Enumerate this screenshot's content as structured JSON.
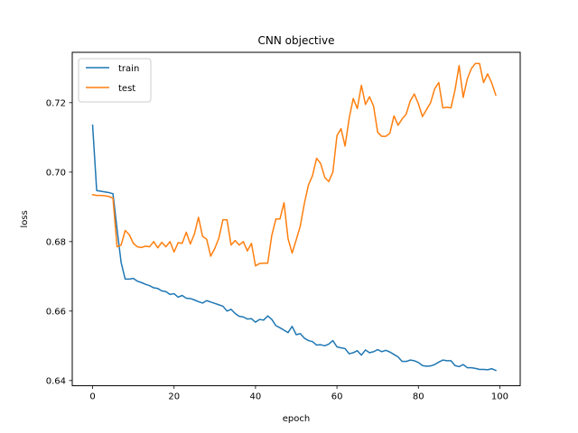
{
  "chart_data": {
    "type": "line",
    "title": "CNN objective",
    "xlabel": "epoch",
    "ylabel": "loss",
    "xlim": [
      -5,
      105
    ],
    "ylim": [
      0.6385,
      0.7345
    ],
    "xticks": [
      0,
      20,
      40,
      60,
      80,
      100
    ],
    "yticks": [
      0.64,
      0.66,
      0.68,
      0.7,
      0.72
    ],
    "xtick_labels": [
      "0",
      "20",
      "40",
      "60",
      "80",
      "100"
    ],
    "ytick_labels": [
      "0.64",
      "0.66",
      "0.68",
      "0.70",
      "0.72"
    ],
    "grid": false,
    "legend_position": "top-left",
    "x": [
      0,
      1,
      2,
      3,
      4,
      5,
      6,
      7,
      8,
      9,
      10,
      11,
      12,
      13,
      14,
      15,
      16,
      17,
      18,
      19,
      20,
      21,
      22,
      23,
      24,
      25,
      26,
      27,
      28,
      29,
      30,
      31,
      32,
      33,
      34,
      35,
      36,
      37,
      38,
      39,
      40,
      41,
      42,
      43,
      44,
      45,
      46,
      47,
      48,
      49,
      50,
      51,
      52,
      53,
      54,
      55,
      56,
      57,
      58,
      59,
      60,
      61,
      62,
      63,
      64,
      65,
      66,
      67,
      68,
      69,
      70,
      71,
      72,
      73,
      74,
      75,
      76,
      77,
      78,
      79,
      80,
      81,
      82,
      83,
      84,
      85,
      86,
      87,
      88,
      89,
      90,
      91,
      92,
      93,
      94,
      95,
      96,
      97,
      98,
      99
    ],
    "series": [
      {
        "name": "train",
        "color": "#1f77b4",
        "values": [
          0.7135,
          0.6947,
          0.6945,
          0.6943,
          0.6941,
          0.6938,
          0.6836,
          0.674,
          0.6692,
          0.6692,
          0.6694,
          0.6686,
          0.6682,
          0.6677,
          0.6673,
          0.6667,
          0.6665,
          0.6658,
          0.6656,
          0.6648,
          0.665,
          0.664,
          0.6645,
          0.6637,
          0.6636,
          0.6632,
          0.6627,
          0.6623,
          0.663,
          0.6626,
          0.6622,
          0.6618,
          0.6614,
          0.66,
          0.6605,
          0.6593,
          0.6585,
          0.6583,
          0.6577,
          0.6578,
          0.6568,
          0.6576,
          0.6574,
          0.6586,
          0.6576,
          0.6558,
          0.6552,
          0.6545,
          0.6538,
          0.6556,
          0.6532,
          0.6535,
          0.6522,
          0.6515,
          0.6512,
          0.6502,
          0.6503,
          0.65,
          0.6505,
          0.6515,
          0.6497,
          0.6494,
          0.6492,
          0.6477,
          0.648,
          0.6486,
          0.6473,
          0.6488,
          0.648,
          0.6483,
          0.6489,
          0.6483,
          0.6487,
          0.6482,
          0.6475,
          0.6468,
          0.6455,
          0.6455,
          0.6459,
          0.6457,
          0.6452,
          0.6443,
          0.6441,
          0.6442,
          0.6446,
          0.6453,
          0.6459,
          0.6457,
          0.6457,
          0.6443,
          0.644,
          0.6446,
          0.6437,
          0.6437,
          0.6435,
          0.6432,
          0.6432,
          0.6431,
          0.6434,
          0.6429
        ]
      },
      {
        "name": "test",
        "color": "#ff7f0e",
        "values": [
          0.6935,
          0.6933,
          0.6933,
          0.6932,
          0.693,
          0.6925,
          0.6785,
          0.679,
          0.6832,
          0.682,
          0.6795,
          0.6785,
          0.6783,
          0.6787,
          0.6785,
          0.68,
          0.6782,
          0.6798,
          0.6785,
          0.68,
          0.677,
          0.6797,
          0.6795,
          0.6827,
          0.6793,
          0.6822,
          0.687,
          0.6815,
          0.6807,
          0.6758,
          0.678,
          0.681,
          0.6863,
          0.6863,
          0.679,
          0.6803,
          0.679,
          0.68,
          0.6773,
          0.6795,
          0.673,
          0.6737,
          0.6738,
          0.6738,
          0.6818,
          0.6865,
          0.6865,
          0.6912,
          0.6808,
          0.6767,
          0.6805,
          0.6845,
          0.691,
          0.6963,
          0.699,
          0.704,
          0.7025,
          0.6985,
          0.6973,
          0.7,
          0.7105,
          0.7125,
          0.7075,
          0.7155,
          0.7212,
          0.7183,
          0.725,
          0.7195,
          0.7217,
          0.719,
          0.7115,
          0.7103,
          0.7103,
          0.7112,
          0.7162,
          0.7135,
          0.7153,
          0.7167,
          0.7205,
          0.7225,
          0.7197,
          0.716,
          0.718,
          0.72,
          0.724,
          0.7258,
          0.7185,
          0.7187,
          0.7185,
          0.7237,
          0.7307,
          0.7215,
          0.7268,
          0.7298,
          0.7313,
          0.7313,
          0.7258,
          0.7283,
          0.7257,
          0.7222
        ]
      }
    ]
  }
}
